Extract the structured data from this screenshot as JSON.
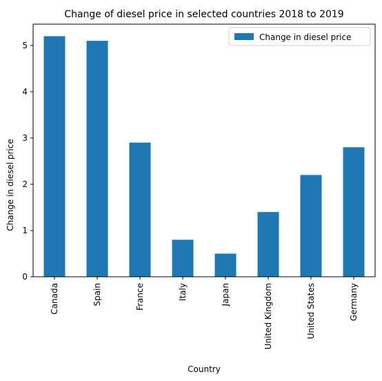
{
  "chart_data": {
    "type": "bar",
    "title": "Change of diesel price in selected countries 2018 to 2019",
    "xlabel": "Country",
    "ylabel": "Change in diesel price",
    "categories": [
      "Canada",
      "Spain",
      "France",
      "Italy",
      "Japan",
      "United Kingdom",
      "United States",
      "Germany"
    ],
    "series": [
      {
        "name": "Change in diesel price",
        "values": [
          5.2,
          5.1,
          2.9,
          0.8,
          0.5,
          1.4,
          2.2,
          2.8
        ],
        "color": "#1f77b4"
      }
    ],
    "ylim": [
      0,
      5.46
    ],
    "yticks": [
      0,
      1,
      2,
      3,
      4,
      5
    ],
    "grid": false,
    "legend": "top-right"
  }
}
